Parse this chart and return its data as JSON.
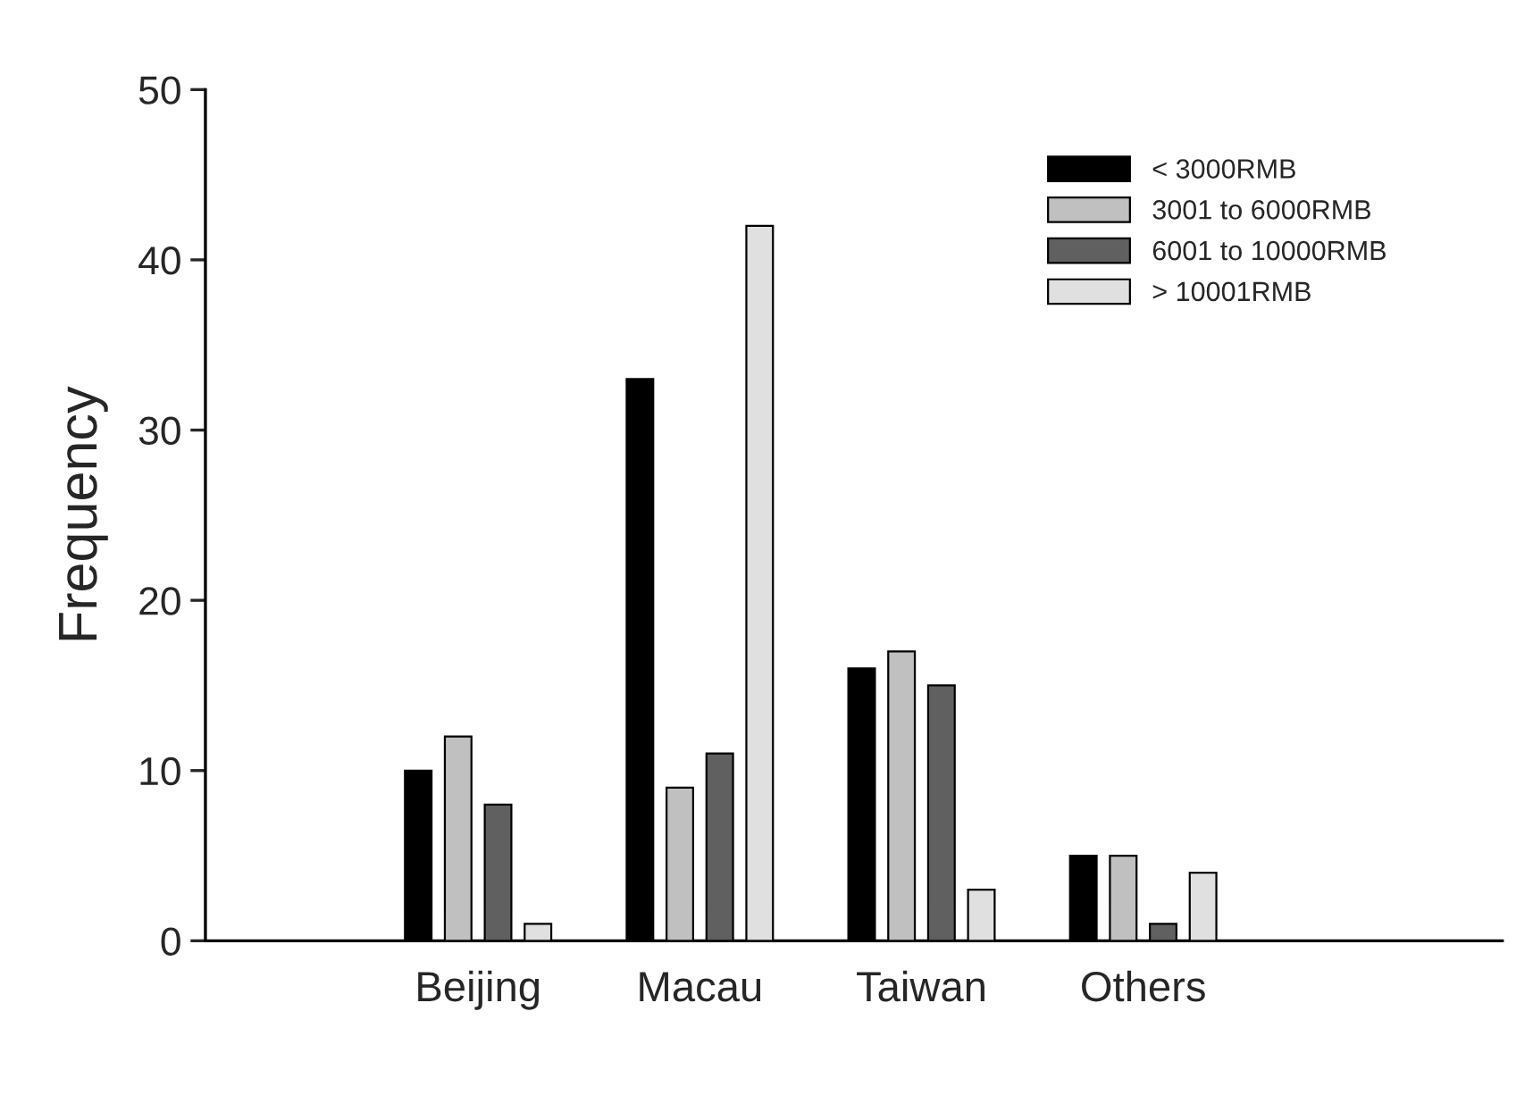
{
  "chart_data": {
    "type": "bar",
    "ylabel": "Frequency",
    "categories": [
      "Beijing",
      "Macau",
      "Taiwan",
      "Others"
    ],
    "series": [
      {
        "name": "< 3000RMB",
        "color": "#000000",
        "values": [
          10,
          33,
          16,
          5
        ]
      },
      {
        "name": "3001 to 6000RMB",
        "color": "#c0c0c0",
        "values": [
          12,
          9,
          17,
          5
        ]
      },
      {
        "name": "6001 to 10000RMB",
        "color": "#606060",
        "values": [
          8,
          11,
          15,
          1
        ]
      },
      {
        "name": "> 10001RMB",
        "color": "#e0e0e0",
        "values": [
          1,
          42,
          3,
          4
        ]
      }
    ],
    "ylim": [
      0,
      50
    ],
    "yticks": [
      0,
      10,
      20,
      30,
      40,
      50
    ],
    "grid": false,
    "legend": "top right"
  }
}
